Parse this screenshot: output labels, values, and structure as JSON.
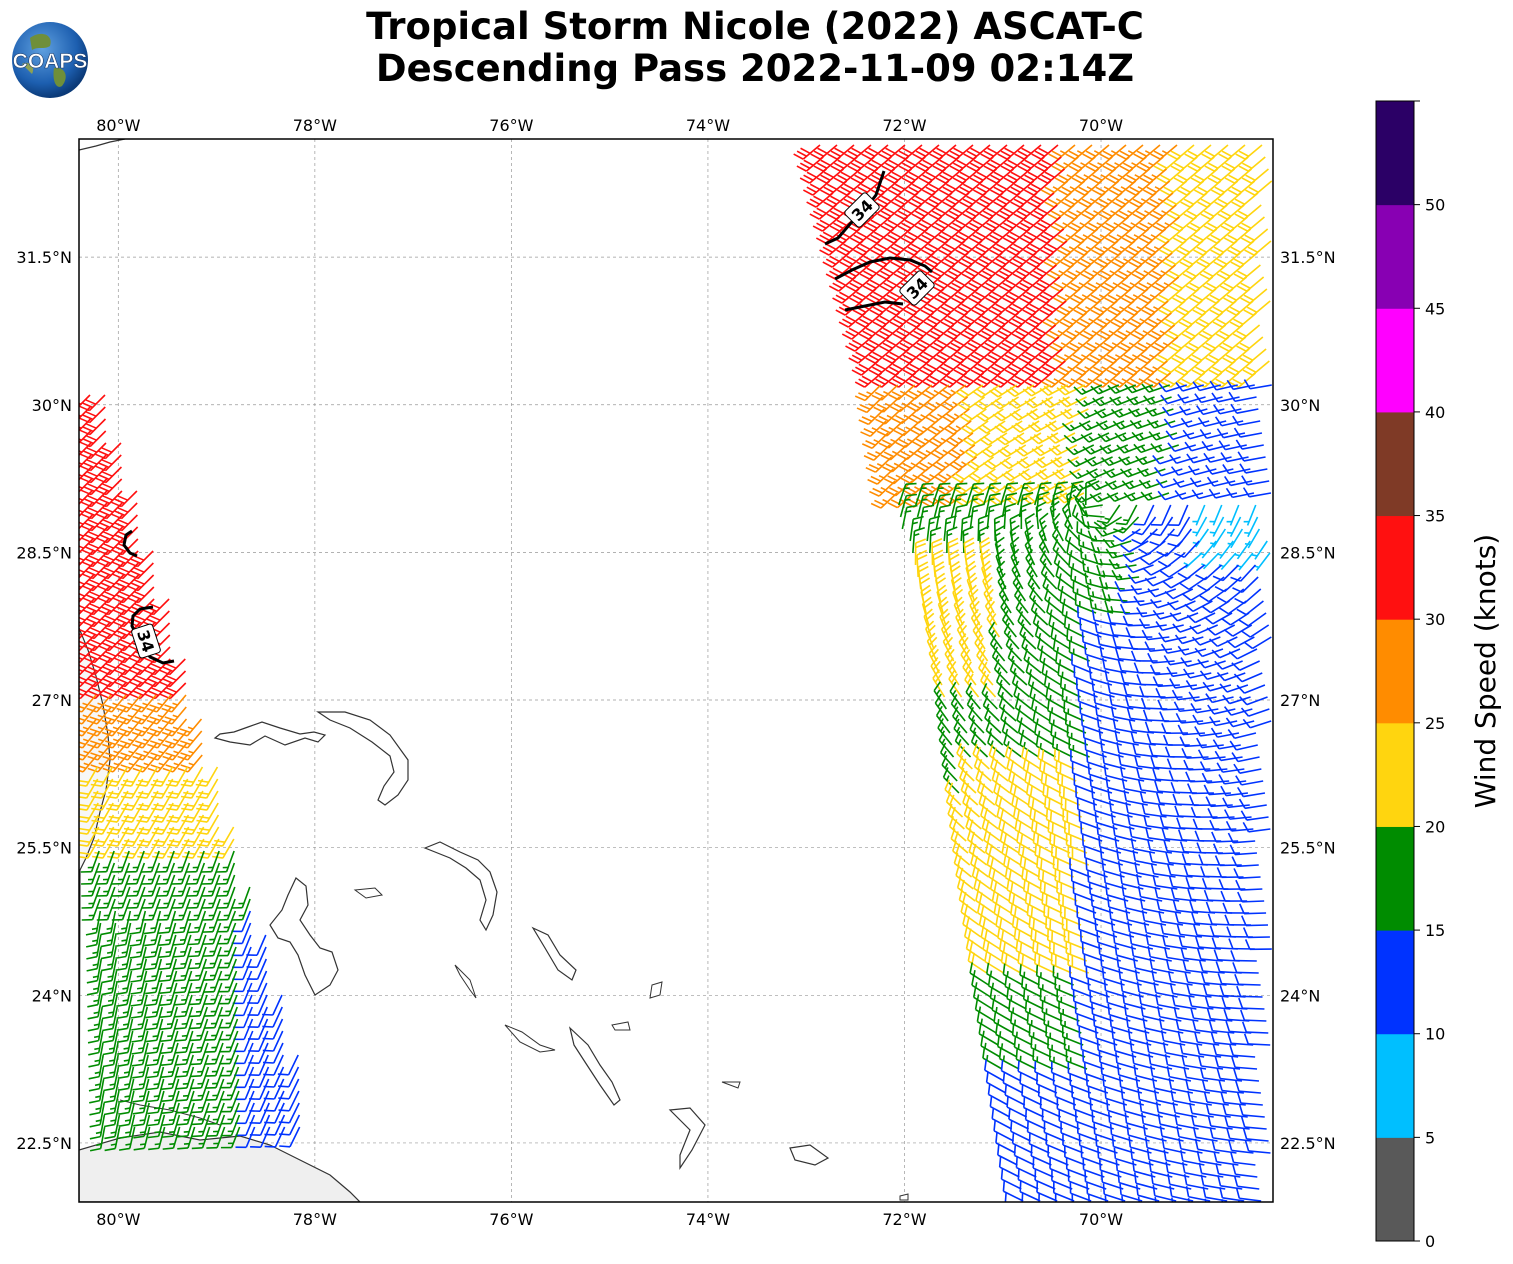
{
  "title": {
    "line1": "Tropical Storm Nicole (2022) ASCAT-C",
    "line2": "Descending Pass 2022-11-09 02:14Z"
  },
  "logo": {
    "text": "COAPS"
  },
  "map": {
    "lon_range": [
      -80.4,
      -68.25
    ],
    "lat_range": [
      21.9,
      32.7
    ],
    "lon_ticks": [
      {
        "value": -80,
        "label": "80°W"
      },
      {
        "value": -78,
        "label": "78°W"
      },
      {
        "value": -76,
        "label": "76°W"
      },
      {
        "value": -74,
        "label": "74°W"
      },
      {
        "value": -72,
        "label": "72°W"
      },
      {
        "value": -70,
        "label": "70°W"
      }
    ],
    "lat_ticks": [
      {
        "value": 31.5,
        "label": "31.5°N"
      },
      {
        "value": 30,
        "label": "30°N"
      },
      {
        "value": 28.5,
        "label": "28.5°N"
      },
      {
        "value": 27,
        "label": "27°N"
      },
      {
        "value": 25.5,
        "label": "25.5°N"
      },
      {
        "value": 24,
        "label": "24°N"
      },
      {
        "value": 22.5,
        "label": "22.5°N"
      }
    ],
    "contour_label": "34",
    "contour_color": "#000000"
  },
  "colorbar": {
    "label": "Wind Speed (knots)",
    "bins": [
      {
        "from": 0,
        "to": 5,
        "color": "#595959"
      },
      {
        "from": 5,
        "to": 10,
        "color": "#00bfff"
      },
      {
        "from": 10,
        "to": 15,
        "color": "#0033ff"
      },
      {
        "from": 15,
        "to": 20,
        "color": "#008c00"
      },
      {
        "from": 20,
        "to": 25,
        "color": "#ffd50f"
      },
      {
        "from": 25,
        "to": 30,
        "color": "#ff8c00"
      },
      {
        "from": 30,
        "to": 35,
        "color": "#ff1010"
      },
      {
        "from": 35,
        "to": 40,
        "color": "#7f3a26"
      },
      {
        "from": 40,
        "to": 45,
        "color": "#ff00ff"
      },
      {
        "from": 45,
        "to": 50,
        "color": "#8800b3"
      },
      {
        "from": 50,
        "to": 55,
        "color": "#2b0066"
      }
    ],
    "tick_labels": [
      "0",
      "5",
      "10",
      "15",
      "20",
      "25",
      "30",
      "35",
      "40",
      "45",
      "50"
    ]
  }
}
